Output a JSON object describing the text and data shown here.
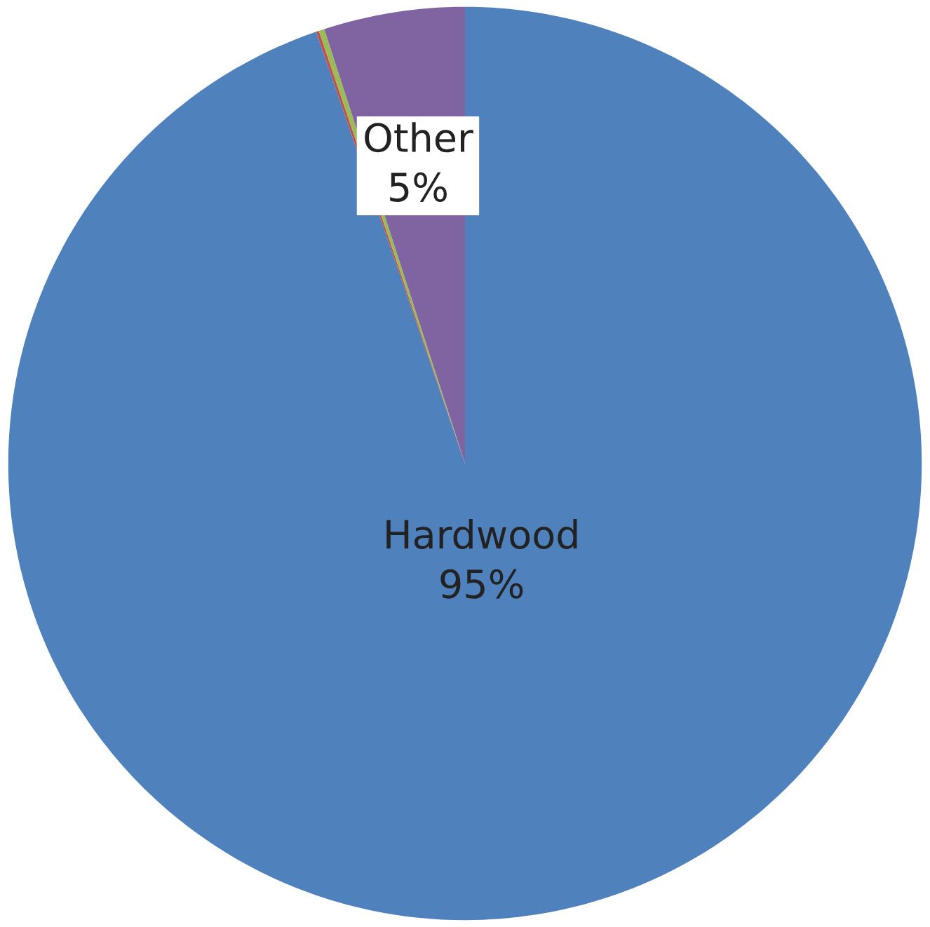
{
  "chart_data": {
    "type": "pie",
    "categories": [
      "Hardwood",
      null,
      null,
      "Other"
    ],
    "values": [
      95,
      0.1,
      0.2,
      5
    ],
    "colors": [
      "#4f81bd",
      "#c0504d",
      "#9bbb59",
      "#8064a2"
    ],
    "value_labels": [
      "95%",
      null,
      null,
      "5%"
    ],
    "legend": false
  }
}
